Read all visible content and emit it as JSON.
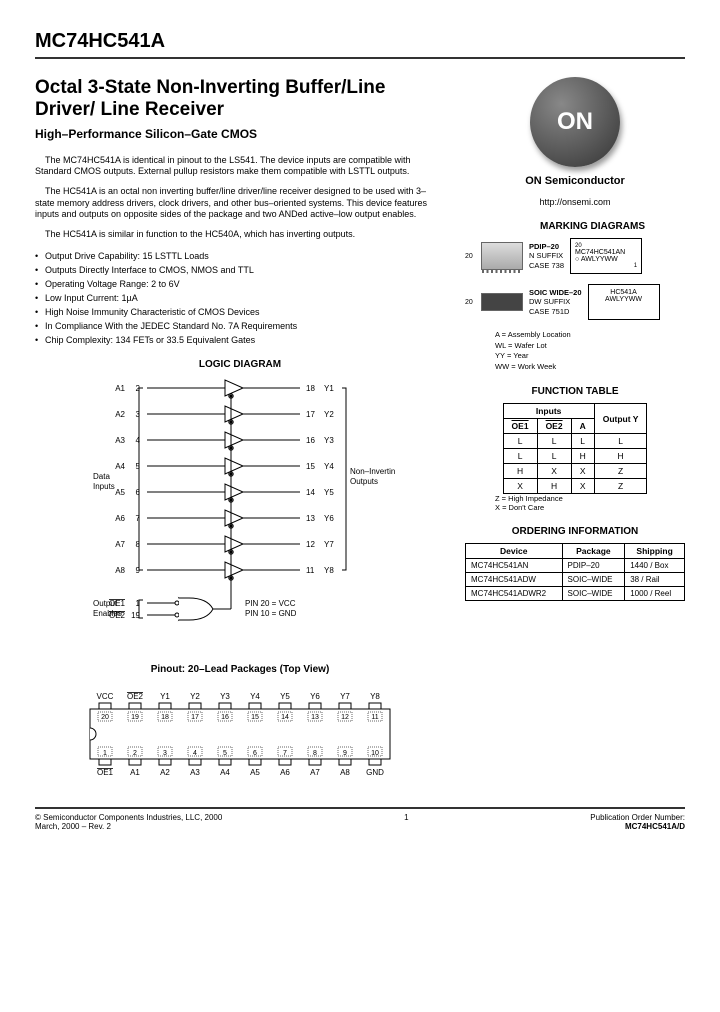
{
  "part_number": "MC74HC541A",
  "title": "Octal 3-State Non-Inverting Buffer/Line Driver/ Line Receiver",
  "subtitle": "High–Performance Silicon–Gate CMOS",
  "para1": "The MC74HC541A is identical in pinout to the LS541. The device inputs are compatible with Standard CMOS outputs. External pullup resistors make them compatible with LSTTL outputs.",
  "para2": "The HC541A is an octal non inverting buffer/line driver/line receiver designed to be used with 3–state memory address drivers, clock drivers, and other bus–oriented systems. This device features inputs and outputs on opposite sides of the package and two ANDed active–low output enables.",
  "para3": "The HC541A is similar in function to the HC540A, which has inverting outputs.",
  "features": [
    "Output Drive Capability: 15 LSTTL Loads",
    "Outputs Directly Interface to CMOS, NMOS and TTL",
    "Operating Voltage Range: 2 to 6V",
    "Low Input Current: 1µA",
    "High Noise Immunity Characteristic of CMOS Devices",
    "In Compliance With the JEDEC Standard No. 7A Requirements",
    "Chip Complexity: 134 FETs or 33.5 Equivalent Gates"
  ],
  "logic_hdr": "LOGIC DIAGRAM",
  "logic": {
    "inputs": [
      "A1",
      "A2",
      "A3",
      "A4",
      "A5",
      "A6",
      "A7",
      "A8"
    ],
    "in_pins": [
      "2",
      "3",
      "4",
      "5",
      "6",
      "7",
      "8",
      "9"
    ],
    "outputs": [
      "Y1",
      "Y2",
      "Y3",
      "Y4",
      "Y5",
      "Y6",
      "Y7",
      "Y8"
    ],
    "out_pins": [
      "18",
      "17",
      "16",
      "15",
      "14",
      "13",
      "12",
      "11"
    ],
    "data_inputs_label": "Data Inputs",
    "non_inv_label": "Non–Inverting Outputs",
    "enables_label": "Output Enables",
    "oe1": "OE1",
    "oe2": "OE2",
    "oe1_pin": "1",
    "oe2_pin": "19",
    "vcc_note": "PIN 20 = VCC",
    "gnd_note": "PIN 10 = GND"
  },
  "pinout_hdr": "Pinout: 20–Lead Packages (Top View)",
  "pin_top": [
    "VCC",
    "OE2",
    "Y1",
    "Y2",
    "Y3",
    "Y4",
    "Y5",
    "Y6",
    "Y7",
    "Y8"
  ],
  "pin_top_nums": [
    "20",
    "19",
    "18",
    "17",
    "16",
    "15",
    "14",
    "13",
    "12",
    "11"
  ],
  "pin_bot": [
    "OE1",
    "A1",
    "A2",
    "A3",
    "A4",
    "A5",
    "A6",
    "A7",
    "A8",
    "GND"
  ],
  "pin_bot_nums": [
    "1",
    "2",
    "3",
    "4",
    "5",
    "6",
    "7",
    "8",
    "9",
    "10"
  ],
  "right": {
    "logo_text": "ON",
    "brand": "ON Semiconductor",
    "url": "http://onsemi.com",
    "marking_hdr": "MARKING DIAGRAMS",
    "pdip": {
      "pin": "20",
      "num": "1",
      "label": "PDIP–20",
      "suffix": "N SUFFIX",
      "case": "CASE 738"
    },
    "pdip_mark": {
      "l1": "MC74HC541AN",
      "l2": "○ AWLYYWW"
    },
    "soic": {
      "pin": "20",
      "num": "1",
      "label": "SOIC WIDE–20",
      "suffix": "DW SUFFIX",
      "case": "CASE 751D"
    },
    "soic_mark": {
      "l1": "HC541A",
      "l2": "AWLYYWW"
    },
    "legend": {
      "A": "A = Assembly Location",
      "WL": "WL = Wafer Lot",
      "YY": "YY = Year",
      "WW": "WW = Work Week"
    },
    "ftable_hdr": "FUNCTION TABLE",
    "ftable": {
      "inputs_hdr": "Inputs",
      "output_hdr": "Output Y",
      "cols": [
        "OE1",
        "OE2",
        "A"
      ],
      "rows": [
        [
          "L",
          "L",
          "L",
          "L"
        ],
        [
          "L",
          "L",
          "H",
          "H"
        ],
        [
          "H",
          "X",
          "X",
          "Z"
        ],
        [
          "X",
          "H",
          "X",
          "Z"
        ]
      ],
      "note": "Z = High Impedance\nX = Don't Care"
    },
    "ord_hdr": "ORDERING INFORMATION",
    "ord": {
      "cols": [
        "Device",
        "Package",
        "Shipping"
      ],
      "rows": [
        [
          "MC74HC541AN",
          "PDIP–20",
          "1440 / Box"
        ],
        [
          "MC74HC541ADW",
          "SOIC–WIDE",
          "38 / Rail"
        ],
        [
          "MC74HC541ADWR2",
          "SOIC–WIDE",
          "1000 / Reel"
        ]
      ]
    }
  },
  "footer": {
    "copyright": "© Semiconductor Components Industries, LLC, 2000",
    "date": "March, 2000 – Rev. 2",
    "page": "1",
    "pub_label": "Publication Order Number:",
    "pub": "MC74HC541A/D"
  }
}
